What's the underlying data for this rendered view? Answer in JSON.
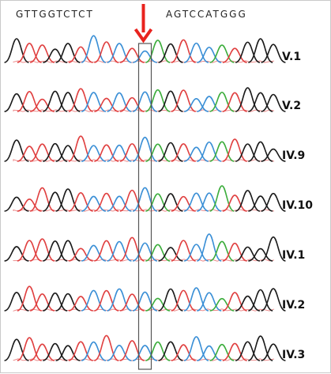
{
  "figure": {
    "sequence_left": "GTTGGTCTCT",
    "sequence_right": "AGTCCATGGG",
    "mutation_arrow_color": "#e8231e",
    "highlight_box_color": "#555555",
    "trace_colors": {
      "A": "#3cad3c",
      "C": "#3a8fd6",
      "G": "#1a1a1a",
      "T": "#e04040"
    },
    "samples": [
      {
        "label": "V.1"
      },
      {
        "label": "V.2"
      },
      {
        "label": "IV.9"
      },
      {
        "label": "IV.10"
      },
      {
        "label": "IV.1"
      },
      {
        "label": "IV.2"
      },
      {
        "label": "IV.3"
      }
    ]
  }
}
